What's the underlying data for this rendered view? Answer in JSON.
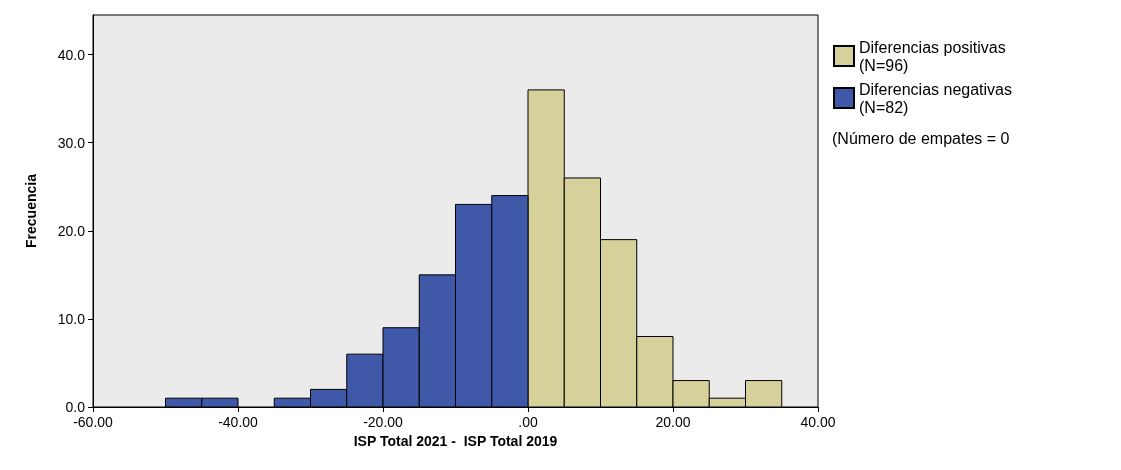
{
  "chart_data": {
    "type": "histogram",
    "xlabel": "ISP Total 2021 -  ISP Total 2019",
    "ylabel": "Frecuencia",
    "bins": [
      -50,
      -45,
      -40,
      -35,
      -30,
      -25,
      -20,
      -15,
      -10,
      -5,
      0,
      5,
      10,
      15,
      20,
      25,
      30,
      35
    ],
    "series": [
      {
        "name": "Diferencias positivas (N=96)",
        "color": "#d6d19a",
        "values": [
          null,
          null,
          null,
          null,
          null,
          null,
          null,
          null,
          null,
          null,
          36,
          26,
          19,
          8,
          3,
          1,
          3
        ]
      },
      {
        "name": "Diferencias negativas (N=82)",
        "color": "#3f58a8",
        "values": [
          1,
          1,
          0,
          1,
          2,
          6,
          9,
          15,
          23,
          24,
          null,
          null,
          null,
          null,
          null,
          null,
          null
        ]
      }
    ],
    "xlim": [
      -60,
      40
    ],
    "xticks": [
      {
        "value": -60,
        "label": "-60.00"
      },
      {
        "value": -40,
        "label": "-40.00"
      },
      {
        "value": -20,
        "label": "-20.00"
      },
      {
        "value": 0,
        "label": ".00"
      },
      {
        "value": 20,
        "label": "20.00"
      },
      {
        "value": 40,
        "label": "40.00"
      }
    ],
    "ylim": [
      0,
      44.5
    ],
    "yticks": [
      {
        "value": 0,
        "label": "0.0"
      },
      {
        "value": 10,
        "label": "10.0"
      },
      {
        "value": 20,
        "label": "20.0"
      },
      {
        "value": 30,
        "label": "30.0"
      },
      {
        "value": 40,
        "label": "40.0"
      }
    ],
    "legend": "top right",
    "grid": false,
    "annotations": [
      "(Número de empates = 0"
    ]
  }
}
